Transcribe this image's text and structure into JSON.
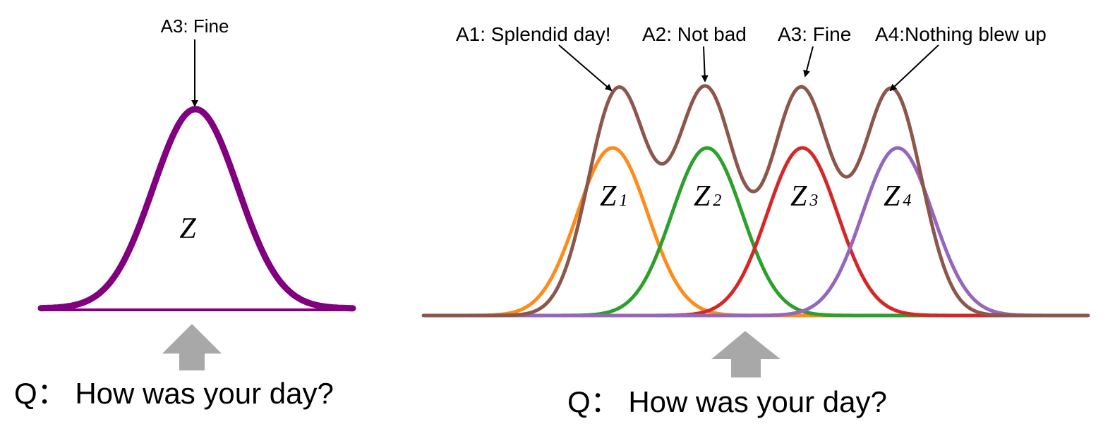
{
  "left_panel": {
    "answer": "A3: Fine",
    "latent": "Z",
    "question": "Q： How was your day?",
    "curve_color": "#800080"
  },
  "right_panel": {
    "answers": [
      {
        "text": "A1: Splendid day!"
      },
      {
        "text": "A2: Not bad"
      },
      {
        "text": "A3: Fine"
      },
      {
        "text": "A4:Nothing blew up"
      }
    ],
    "latents": [
      {
        "letter": "Z",
        "sub": "1",
        "color": "#ff8c1a"
      },
      {
        "letter": "Z",
        "sub": "2",
        "color": "#2ca02c"
      },
      {
        "letter": "Z",
        "sub": "3",
        "color": "#d62728"
      },
      {
        "letter": "Z",
        "sub": "4",
        "color": "#9467bd"
      }
    ],
    "mixture_color": "#8c564b",
    "question": "Q： How was your day?"
  },
  "arrow_color": "#a8a8a8"
}
